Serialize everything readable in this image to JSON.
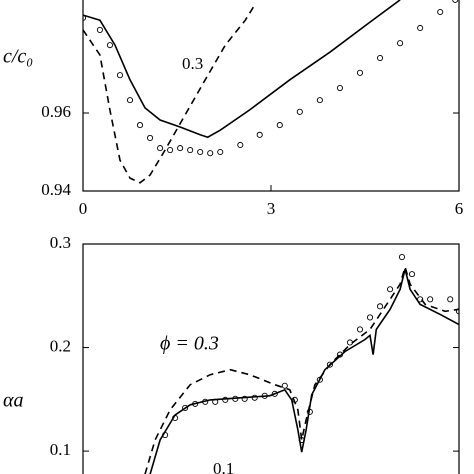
{
  "chart_data": [
    {
      "type": "line",
      "ylabel": "c/c₀",
      "annotation": "0.3",
      "xlim": [
        0,
        6
      ],
      "xticks": [
        0,
        3,
        6
      ],
      "ylim": [
        0.94,
        0.99
      ],
      "yticks": [
        0.94,
        0.96
      ],
      "series": [
        {
          "color": "#000000",
          "style": "solid",
          "x": [
            0,
            0.27,
            0.51,
            0.75,
            0.99,
            1.23,
            1.55,
            1.87,
            1.99,
            2.19,
            2.66,
            3.3,
            3.94,
            4.58,
            5.06
          ],
          "values": [
            0.9851,
            0.9838,
            0.9774,
            0.9685,
            0.9613,
            0.9582,
            0.9564,
            0.9544,
            0.9538,
            0.9556,
            0.9608,
            0.9685,
            0.9756,
            0.9833,
            0.989
          ]
        },
        {
          "color": "#000000",
          "style": "dashed",
          "x": [
            0,
            0.27,
            0.43,
            0.59,
            0.75,
            0.91,
            1.07,
            1.31,
            1.63,
            1.95,
            2.27,
            2.59,
            2.74
          ],
          "values": [
            0.9813,
            0.9749,
            0.9608,
            0.9479,
            0.9433,
            0.9421,
            0.9441,
            0.9505,
            0.9595,
            0.9685,
            0.9774,
            0.9838,
            0.9877
          ]
        },
        {
          "color": "#000000",
          "style": "markers",
          "x": [
            0,
            0.27,
            0.43,
            0.59,
            0.75,
            0.91,
            1.07,
            1.23,
            1.39,
            1.55,
            1.71,
            1.87,
            2.03,
            2.19,
            2.51,
            2.82,
            3.14,
            3.46,
            3.78,
            4.1,
            4.42,
            4.74,
            5.06,
            5.38,
            5.7,
            5.94
          ],
          "values": [
            0.9844,
            0.9813,
            0.9774,
            0.9697,
            0.9633,
            0.9569,
            0.9536,
            0.951,
            0.9505,
            0.951,
            0.9505,
            0.95,
            0.9497,
            0.95,
            0.9518,
            0.9544,
            0.9569,
            0.9603,
            0.9633,
            0.9664,
            0.9703,
            0.9741,
            0.9779,
            0.9818,
            0.9859,
            0.989
          ]
        }
      ]
    },
    {
      "type": "line",
      "ylabel": "αa",
      "annotation": "ϕ = 0.3",
      "annotation2": "0.1",
      "xlim": [
        0,
        6
      ],
      "ylim": [
        0.075,
        0.3
      ],
      "yticks": [
        0.1,
        0.2,
        0.3
      ],
      "series": [
        {
          "color": "#000000",
          "style": "solid",
          "x": [
            1.07,
            1.23,
            1.47,
            1.71,
            2.03,
            2.51,
            2.98,
            3.22,
            3.33,
            3.43,
            3.49,
            3.56,
            3.65,
            3.86,
            4.18,
            4.5,
            4.58,
            4.63,
            4.68,
            4.9,
            5.06,
            5.14,
            5.22,
            5.38,
            5.7,
            6.0
          ],
          "values": [
            0.0777,
            0.1107,
            0.135,
            0.1447,
            0.1495,
            0.1515,
            0.1534,
            0.1592,
            0.1495,
            0.1204,
            0.099,
            0.1204,
            0.1544,
            0.1786,
            0.1961,
            0.2078,
            0.2117,
            0.1932,
            0.2175,
            0.2369,
            0.2563,
            0.2757,
            0.2563,
            0.2417,
            0.232,
            0.2223
          ]
        },
        {
          "color": "#000000",
          "style": "dashed",
          "x": [
            0.99,
            1.15,
            1.39,
            1.71,
            2.03,
            2.35,
            2.66,
            3.06,
            3.3,
            3.43,
            3.49,
            3.56,
            3.7,
            3.94,
            4.26,
            4.58,
            4.9,
            5.06,
            5.14,
            5.22,
            5.46,
            5.78,
            6.0
          ],
          "values": [
            0.0777,
            0.1107,
            0.1398,
            0.1641,
            0.1738,
            0.1786,
            0.1738,
            0.1641,
            0.1592,
            0.1398,
            0.1107,
            0.1301,
            0.1641,
            0.1835,
            0.2029,
            0.2175,
            0.2466,
            0.2612,
            0.2777,
            0.2612,
            0.2417,
            0.235,
            0.2369
          ]
        },
        {
          "color": "#000000",
          "style": "markers",
          "x": [
            1.31,
            1.47,
            1.63,
            1.79,
            1.95,
            2.11,
            2.27,
            2.43,
            2.58,
            2.74,
            2.9,
            3.06,
            3.22,
            3.38,
            3.49,
            3.62,
            3.78,
            3.94,
            4.1,
            4.26,
            4.42,
            4.58,
            4.74,
            4.9,
            5.09,
            5.25,
            5.38,
            5.54,
            5.86,
            6.0
          ],
          "values": [
            0.1155,
            0.132,
            0.1417,
            0.1456,
            0.1476,
            0.1476,
            0.1495,
            0.1505,
            0.1505,
            0.1515,
            0.1534,
            0.1553,
            0.1631,
            0.1495,
            0.1107,
            0.1379,
            0.1689,
            0.1835,
            0.1932,
            0.2049,
            0.2175,
            0.2291,
            0.2398,
            0.2563,
            0.2874,
            0.2709,
            0.2466,
            0.2466,
            0.2466,
            0.235
          ]
        }
      ]
    }
  ]
}
